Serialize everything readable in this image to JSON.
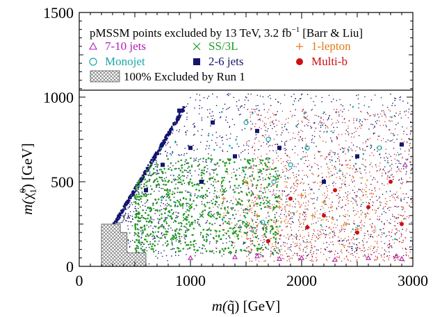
{
  "chart_data": {
    "type": "scatter",
    "title": "pMSSM points excluded by 13 TeV, 3.2 fb",
    "title_sup": "−1",
    "title_suffix": "[Barr & Liu]",
    "xlabel_prefix": "m(",
    "xlabel_symbol": "q̃",
    "xlabel_suffix": ") [GeV]",
    "ylabel_prefix": "m(",
    "ylabel_symbol": "χ̃",
    "ylabel_super": "0",
    "ylabel_sub": "1",
    "ylabel_suffix": ") [GeV]",
    "xlim": [
      0,
      3000
    ],
    "ylim": [
      0,
      1500
    ],
    "data_region_ymax": 1020,
    "xticks": [
      {
        "value": 0,
        "label": "0"
      },
      {
        "value": 1000,
        "label": "1000"
      },
      {
        "value": 2000,
        "label": "2000"
      },
      {
        "value": 3000,
        "label": "3000"
      }
    ],
    "yticks": [
      {
        "value": 0,
        "label": "0"
      },
      {
        "value": 500,
        "label": "500"
      },
      {
        "value": 1000,
        "label": "1000"
      },
      {
        "value": 1500,
        "label": "1500"
      }
    ],
    "series": [
      {
        "name": "7-10 jets",
        "marker": "triangle",
        "color": "#b01cb0"
      },
      {
        "name": "SS/3L",
        "marker": "cross",
        "color": "#1f9a1f"
      },
      {
        "name": "1-lepton",
        "marker": "plus",
        "color": "#e07a18"
      },
      {
        "name": "Monojet",
        "marker": "circle-open",
        "color": "#1aa6a6"
      },
      {
        "name": "2-6 jets",
        "marker": "square",
        "color": "#14146e"
      },
      {
        "name": "Multi-b",
        "marker": "circle-filled",
        "color": "#cc1111"
      }
    ],
    "excluded_label": "100% Excluded by Run 1",
    "excluded_region": [
      [
        200,
        250
      ],
      [
        200,
        0
      ],
      [
        600,
        0
      ],
      [
        600,
        80
      ],
      [
        430,
        80
      ],
      [
        430,
        200
      ],
      [
        370,
        200
      ],
      [
        370,
        250
      ]
    ],
    "diagonal_edge": [
      [
        300,
        250
      ],
      [
        950,
        960
      ]
    ],
    "sample_points": {
      "2-6 jets": [
        [
          900,
          920
        ],
        [
          1200,
          850
        ],
        [
          1600,
          800
        ],
        [
          1000,
          700
        ],
        [
          1400,
          650
        ],
        [
          750,
          600
        ],
        [
          1800,
          700
        ],
        [
          2500,
          650
        ],
        [
          2900,
          720
        ],
        [
          1100,
          500
        ],
        [
          600,
          450
        ],
        [
          2200,
          500
        ]
      ],
      "SS/3L": [
        [
          800,
          420
        ],
        [
          1000,
          360
        ],
        [
          1200,
          300
        ],
        [
          1300,
          450
        ],
        [
          1500,
          250
        ],
        [
          900,
          520
        ],
        [
          1100,
          300
        ],
        [
          1700,
          380
        ],
        [
          1400,
          200
        ],
        [
          950,
          280
        ]
      ],
      "1-lepton": [
        [
          1300,
          400
        ],
        [
          1600,
          300
        ],
        [
          1800,
          350
        ],
        [
          2000,
          420
        ],
        [
          2200,
          380
        ],
        [
          2400,
          250
        ],
        [
          1500,
          500
        ],
        [
          2100,
          300
        ],
        [
          2500,
          220
        ]
      ],
      "Monojet": [
        [
          1700,
          750
        ],
        [
          1750,
          500
        ],
        [
          1500,
          850
        ],
        [
          2050,
          700
        ],
        [
          1650,
          260
        ],
        [
          1900,
          600
        ],
        [
          2700,
          700
        ]
      ],
      "Multi-b": [
        [
          1900,
          400
        ],
        [
          2200,
          300
        ],
        [
          2500,
          200
        ],
        [
          2800,
          500
        ],
        [
          2300,
          450
        ],
        [
          2600,
          350
        ],
        [
          1700,
          150
        ],
        [
          2050,
          230
        ],
        [
          2900,
          250
        ]
      ],
      "7-10 jets": [
        [
          1000,
          50
        ],
        [
          1400,
          55
        ],
        [
          1800,
          45
        ],
        [
          2300,
          40
        ],
        [
          2600,
          50
        ],
        [
          2900,
          45
        ],
        [
          1600,
          60
        ],
        [
          2000,
          50
        ],
        [
          2930,
          600
        ],
        [
          2850,
          60
        ]
      ]
    }
  }
}
